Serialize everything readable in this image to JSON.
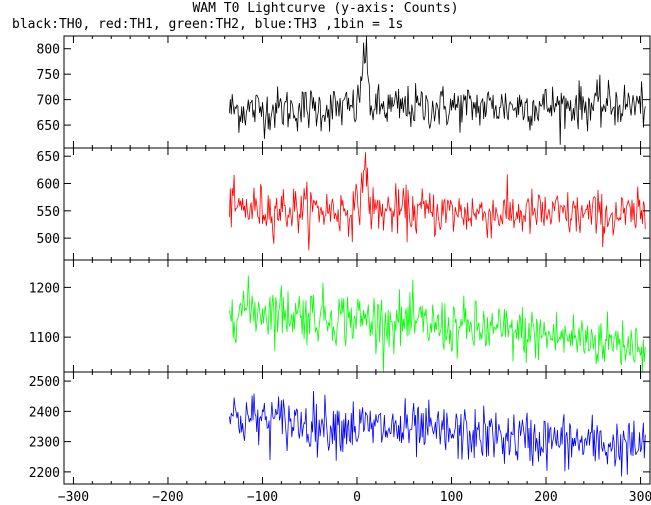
{
  "title": "WAM T0 Lightcurve (y-axis: Counts)",
  "subtitle": "black:TH0, red:TH1, green:TH2, blue:TH3 ,1bin = 1s",
  "chart_data": {
    "type": "line",
    "xlim": [
      -310,
      310
    ],
    "x_ticks": [
      -300,
      -200,
      -100,
      0,
      100,
      200,
      300
    ],
    "x_tick_labels": [
      "−300",
      "−200",
      "−100",
      "0",
      "100",
      "200",
      "300"
    ],
    "data_start": -135,
    "data_end": 305,
    "panels": [
      {
        "series": "TH0",
        "color": "#000000",
        "ylim": [
          605,
          825
        ],
        "y_ticks": [
          650,
          700,
          750,
          800
        ],
        "y_tick_labels": [
          "650",
          "700",
          "750",
          "800"
        ],
        "start_level": 680,
        "end_level": 690,
        "noise_sd": 22,
        "peak": {
          "x": 8,
          "height": 110
        }
      },
      {
        "series": "TH1",
        "color": "#ff0000",
        "ylim": [
          460,
          665
        ],
        "y_ticks": [
          500,
          550,
          600,
          650
        ],
        "y_tick_labels": [
          "500",
          "550",
          "600",
          "650"
        ],
        "start_level": 555,
        "end_level": 540,
        "noise_sd": 22,
        "peak": {
          "x": 8,
          "height": 80
        }
      },
      {
        "series": "TH2",
        "color": "#00ff00",
        "ylim": [
          1030,
          1255
        ],
        "y_ticks": [
          1100,
          1200
        ],
        "y_tick_labels": [
          "1100",
          "1200"
        ],
        "start_level": 1160,
        "end_level": 1085,
        "noise_sd": 28,
        "peak": null
      },
      {
        "series": "TH3",
        "color": "#0000ff",
        "ylim": [
          2160,
          2530
        ],
        "y_ticks": [
          2200,
          2300,
          2400,
          2500
        ],
        "y_tick_labels": [
          "2200",
          "2300",
          "2400",
          "2500"
        ],
        "start_level": 2380,
        "end_level": 2280,
        "noise_sd": 45,
        "peak": null
      }
    ]
  }
}
